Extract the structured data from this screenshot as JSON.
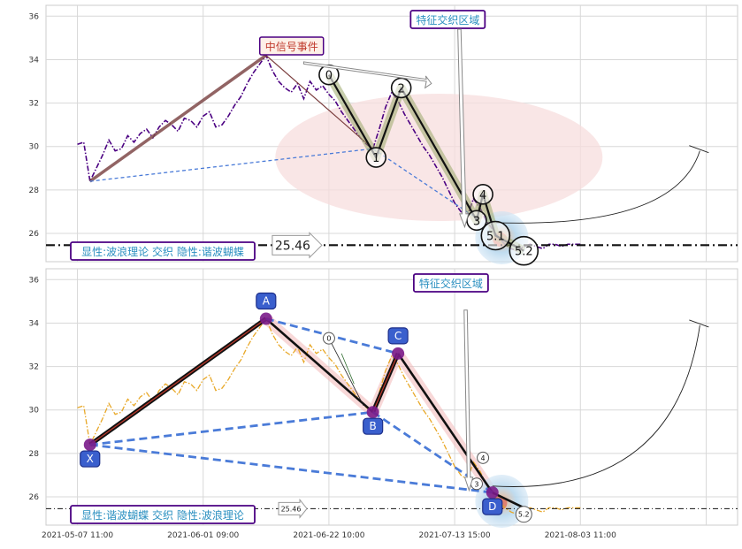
{
  "chart_data": [
    {
      "type": "line",
      "ylim": [
        24.7,
        36.5
      ],
      "yticks": [
        26,
        28,
        30,
        32,
        34,
        36
      ],
      "xlim": [
        -0.05,
        1.05
      ],
      "colors": {
        "price": "#4b0082",
        "trend_main": "#7f4a4a",
        "guide": "#4a7bd8",
        "ellipse": "#f7dede",
        "arrow": "#666666"
      },
      "series": [
        {
          "values_desc": "close",
          "x": [
            0,
            0.01,
            0.02,
            0.03,
            0.04,
            0.05,
            0.06,
            0.07,
            0.08,
            0.09,
            0.1,
            0.11,
            0.12,
            0.13,
            0.14,
            0.15,
            0.16,
            0.17,
            0.18,
            0.19,
            0.2,
            0.21,
            0.22,
            0.23,
            0.24,
            0.25,
            0.26,
            0.27,
            0.28,
            0.29,
            0.3,
            0.31,
            0.32,
            0.33,
            0.34,
            0.35,
            0.36,
            0.37,
            0.38,
            0.39,
            0.4,
            0.41,
            0.42,
            0.43,
            0.44,
            0.45,
            0.46,
            0.47,
            0.48,
            0.49,
            0.5,
            0.51,
            0.52,
            0.53,
            0.54,
            0.55,
            0.56,
            0.57,
            0.58,
            0.59,
            0.6,
            0.61,
            0.62,
            0.63,
            0.64,
            0.65,
            0.66,
            0.67,
            0.68,
            0.69,
            0.7,
            0.71,
            0.72,
            0.73,
            0.74,
            0.75,
            0.76,
            0.77,
            0.78,
            0.79,
            0.8
          ],
          "values": [
            30.1,
            30.2,
            28.4,
            29.0,
            29.6,
            30.3,
            29.8,
            29.9,
            30.5,
            30.2,
            30.6,
            30.8,
            30.4,
            30.9,
            31.2,
            31.0,
            30.7,
            31.3,
            31.2,
            30.9,
            31.4,
            31.6,
            30.9,
            31.0,
            31.4,
            31.9,
            32.3,
            32.9,
            33.4,
            33.8,
            34.2,
            33.5,
            33.0,
            32.7,
            32.5,
            32.9,
            32.2,
            33.0,
            32.6,
            32.8,
            32.4,
            32.1,
            31.6,
            31.2,
            30.8,
            30.4,
            30.1,
            29.9,
            30.8,
            31.8,
            32.5,
            32.1,
            31.5,
            31.0,
            30.5,
            30.0,
            29.6,
            29.1,
            28.6,
            28.0,
            27.4,
            27.0,
            26.8,
            27.6,
            27.2,
            26.6,
            26.2,
            25.8,
            25.5,
            25.3,
            25.2,
            25.4,
            25.5,
            25.4,
            25.3,
            25.5,
            25.5,
            25.4,
            25.5,
            25.5,
            25.5
          ]
        }
      ],
      "points": {
        "X": {
          "x": 0.02,
          "y": 28.4
        },
        "A": {
          "x": 0.3,
          "y": 34.2
        },
        "B": {
          "x": 0.47,
          "y": 29.9
        },
        "C": {
          "x": 0.51,
          "y": 32.6
        },
        "D": {
          "x": 0.66,
          "y": 26.2
        },
        "end": {
          "x": 0.71,
          "y": 25.5
        }
      },
      "wave_labels": [
        {
          "text": "0",
          "x": 0.4,
          "y": 33.3
        },
        {
          "text": "1",
          "x": 0.475,
          "y": 29.5
        },
        {
          "text": "2",
          "x": 0.515,
          "y": 32.7
        },
        {
          "text": "3",
          "x": 0.635,
          "y": 26.6
        },
        {
          "text": "4",
          "x": 0.645,
          "y": 27.8
        },
        {
          "text": "5.1",
          "x": 0.665,
          "y": 25.9
        },
        {
          "text": "5.2",
          "x": 0.71,
          "y": 25.2
        }
      ],
      "hline": {
        "value": 25.46,
        "label": "25.46"
      },
      "annotations": {
        "signal": "中信号事件",
        "zone": "特征交织区域",
        "footer": "显性:波浪理论 交织 隐性:谐波蝴蝶"
      }
    },
    {
      "type": "line",
      "ylim": [
        24.7,
        36.5
      ],
      "yticks": [
        26,
        28,
        30,
        32,
        34,
        36
      ],
      "xlim": [
        -0.05,
        1.05
      ],
      "xtick_labels": [
        "2021-05-07 11:00",
        "2021-06-01 09:00",
        "2021-06-22 10:00",
        "2021-07-13 15:00",
        "2021-08-03 11:00"
      ],
      "colors": {
        "price": "#e8a828",
        "xabcd": "#111111",
        "dash": "#4a7bd8",
        "label_box": "#3a5fcd"
      },
      "series": [
        {
          "values_desc": "close",
          "x": [
            0,
            0.01,
            0.02,
            0.03,
            0.04,
            0.05,
            0.06,
            0.07,
            0.08,
            0.09,
            0.1,
            0.11,
            0.12,
            0.13,
            0.14,
            0.15,
            0.16,
            0.17,
            0.18,
            0.19,
            0.2,
            0.21,
            0.22,
            0.23,
            0.24,
            0.25,
            0.26,
            0.27,
            0.28,
            0.29,
            0.3,
            0.31,
            0.32,
            0.33,
            0.34,
            0.35,
            0.36,
            0.37,
            0.38,
            0.39,
            0.4,
            0.41,
            0.42,
            0.43,
            0.44,
            0.45,
            0.46,
            0.47,
            0.48,
            0.49,
            0.5,
            0.51,
            0.52,
            0.53,
            0.54,
            0.55,
            0.56,
            0.57,
            0.58,
            0.59,
            0.6,
            0.61,
            0.62,
            0.63,
            0.64,
            0.65,
            0.66,
            0.67,
            0.68,
            0.69,
            0.7,
            0.71,
            0.72,
            0.73,
            0.74,
            0.75,
            0.76,
            0.77,
            0.78,
            0.79,
            0.8
          ],
          "values": [
            30.1,
            30.2,
            28.4,
            29.0,
            29.6,
            30.3,
            29.8,
            29.9,
            30.5,
            30.2,
            30.6,
            30.8,
            30.4,
            30.9,
            31.2,
            31.0,
            30.7,
            31.3,
            31.2,
            30.9,
            31.4,
            31.6,
            30.9,
            31.0,
            31.4,
            31.9,
            32.3,
            32.9,
            33.4,
            33.8,
            34.2,
            33.5,
            33.0,
            32.7,
            32.5,
            32.9,
            32.2,
            33.0,
            32.6,
            32.8,
            32.4,
            32.1,
            31.6,
            31.2,
            30.8,
            30.4,
            30.1,
            29.9,
            30.8,
            31.8,
            32.5,
            32.1,
            31.5,
            31.0,
            30.5,
            30.0,
            29.6,
            29.1,
            28.6,
            28.0,
            27.4,
            27.0,
            26.8,
            27.6,
            27.2,
            26.6,
            26.2,
            25.8,
            25.5,
            25.3,
            25.2,
            25.4,
            25.5,
            25.4,
            25.3,
            25.5,
            25.5,
            25.4,
            25.5,
            25.5,
            25.5
          ]
        }
      ],
      "points": {
        "X": {
          "x": 0.02,
          "y": 28.4
        },
        "A": {
          "x": 0.3,
          "y": 34.2
        },
        "B": {
          "x": 0.47,
          "y": 29.9
        },
        "C": {
          "x": 0.51,
          "y": 32.6
        },
        "D": {
          "x": 0.66,
          "y": 26.2
        },
        "end": {
          "x": 0.71,
          "y": 25.5
        }
      },
      "point_labels": [
        "X",
        "A",
        "B",
        "C",
        "D"
      ],
      "wave_labels": [
        {
          "text": "0",
          "x": 0.4,
          "y": 33.3
        },
        {
          "text": "3",
          "x": 0.635,
          "y": 26.6
        },
        {
          "text": "4",
          "x": 0.645,
          "y": 27.8
        },
        {
          "text": "5.2",
          "x": 0.71,
          "y": 25.2
        }
      ],
      "hline": {
        "value": 25.46,
        "label": "25.46"
      },
      "annotations": {
        "zone": "特征交织区域",
        "footer": "显性:谐波蝴蝶 交织 隐性:波浪理论"
      }
    }
  ]
}
